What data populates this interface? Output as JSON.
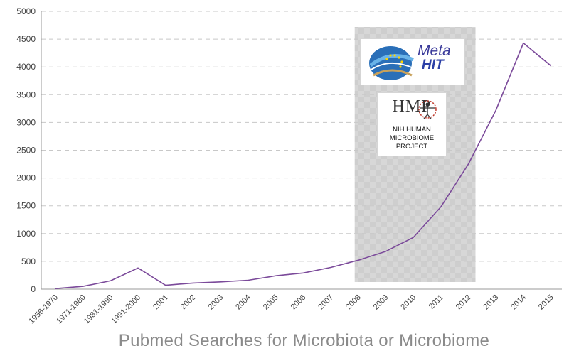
{
  "caption": "Pubmed Searches for Microbiota or Microbiome",
  "colors": {
    "line": "#7b4a9a",
    "grid": "#c8c8c8",
    "band": "#c9c9c9",
    "caption": "#8a8a8a"
  },
  "logos": {
    "metahit_line1": "Meta",
    "metahit_line2": "HIT",
    "hmp_letters": "HMP",
    "hmp_line1": "NIH HUMAN",
    "hmp_line2": "MICROBIOME",
    "hmp_line3": "PROJECT"
  },
  "chart_data": {
    "type": "line",
    "title": "Pubmed Searches for Microbiota or Microbiome",
    "xlabel": "",
    "ylabel": "",
    "ylim": [
      0,
      5000
    ],
    "yticks": [
      0,
      500,
      1000,
      1500,
      2000,
      2500,
      3000,
      3500,
      4000,
      4500,
      5000
    ],
    "grid": "horizontal dashed",
    "categories": [
      "1956-1970",
      "1971-1980",
      "1981-1990",
      "1991-2000",
      "2001",
      "2002",
      "2003",
      "2004",
      "2005",
      "2006",
      "2007",
      "2008",
      "2009",
      "2010",
      "2011",
      "2012",
      "2013",
      "2014",
      "2015"
    ],
    "series": [
      {
        "values": [
          10,
          50,
          150,
          380,
          70,
          110,
          130,
          160,
          240,
          290,
          390,
          520,
          680,
          930,
          1480,
          2250,
          3220,
          4430,
          4020
        ]
      }
    ],
    "highlight_band": {
      "from": "2008",
      "to": "2012"
    }
  }
}
